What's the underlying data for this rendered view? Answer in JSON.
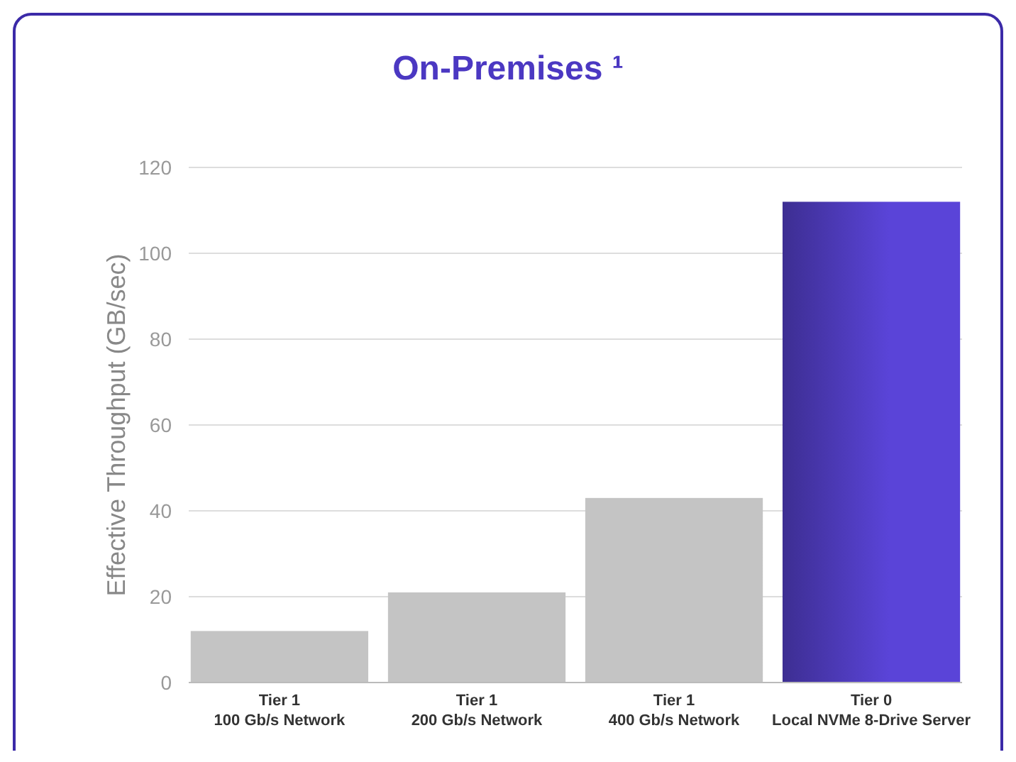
{
  "chart_data": {
    "type": "bar",
    "title": "On-Premises ¹",
    "ylabel": "Effective Throughput (GB/sec)",
    "categories": [
      "Tier 1\n100 Gb/s Network",
      "Tier 1\n200 Gb/s Network",
      "Tier 1\n400 Gb/s Network",
      "Tier 0\nLocal NVMe 8-Drive Server"
    ],
    "values": [
      12,
      21,
      43,
      112
    ],
    "colors": [
      "#c4c4c4",
      "#c4c4c4",
      "#c4c4c4",
      "#5a44d8"
    ],
    "ylim": [
      0,
      120
    ],
    "yticks": [
      0,
      20,
      40,
      60,
      80,
      100,
      120
    ],
    "grid": "y"
  }
}
